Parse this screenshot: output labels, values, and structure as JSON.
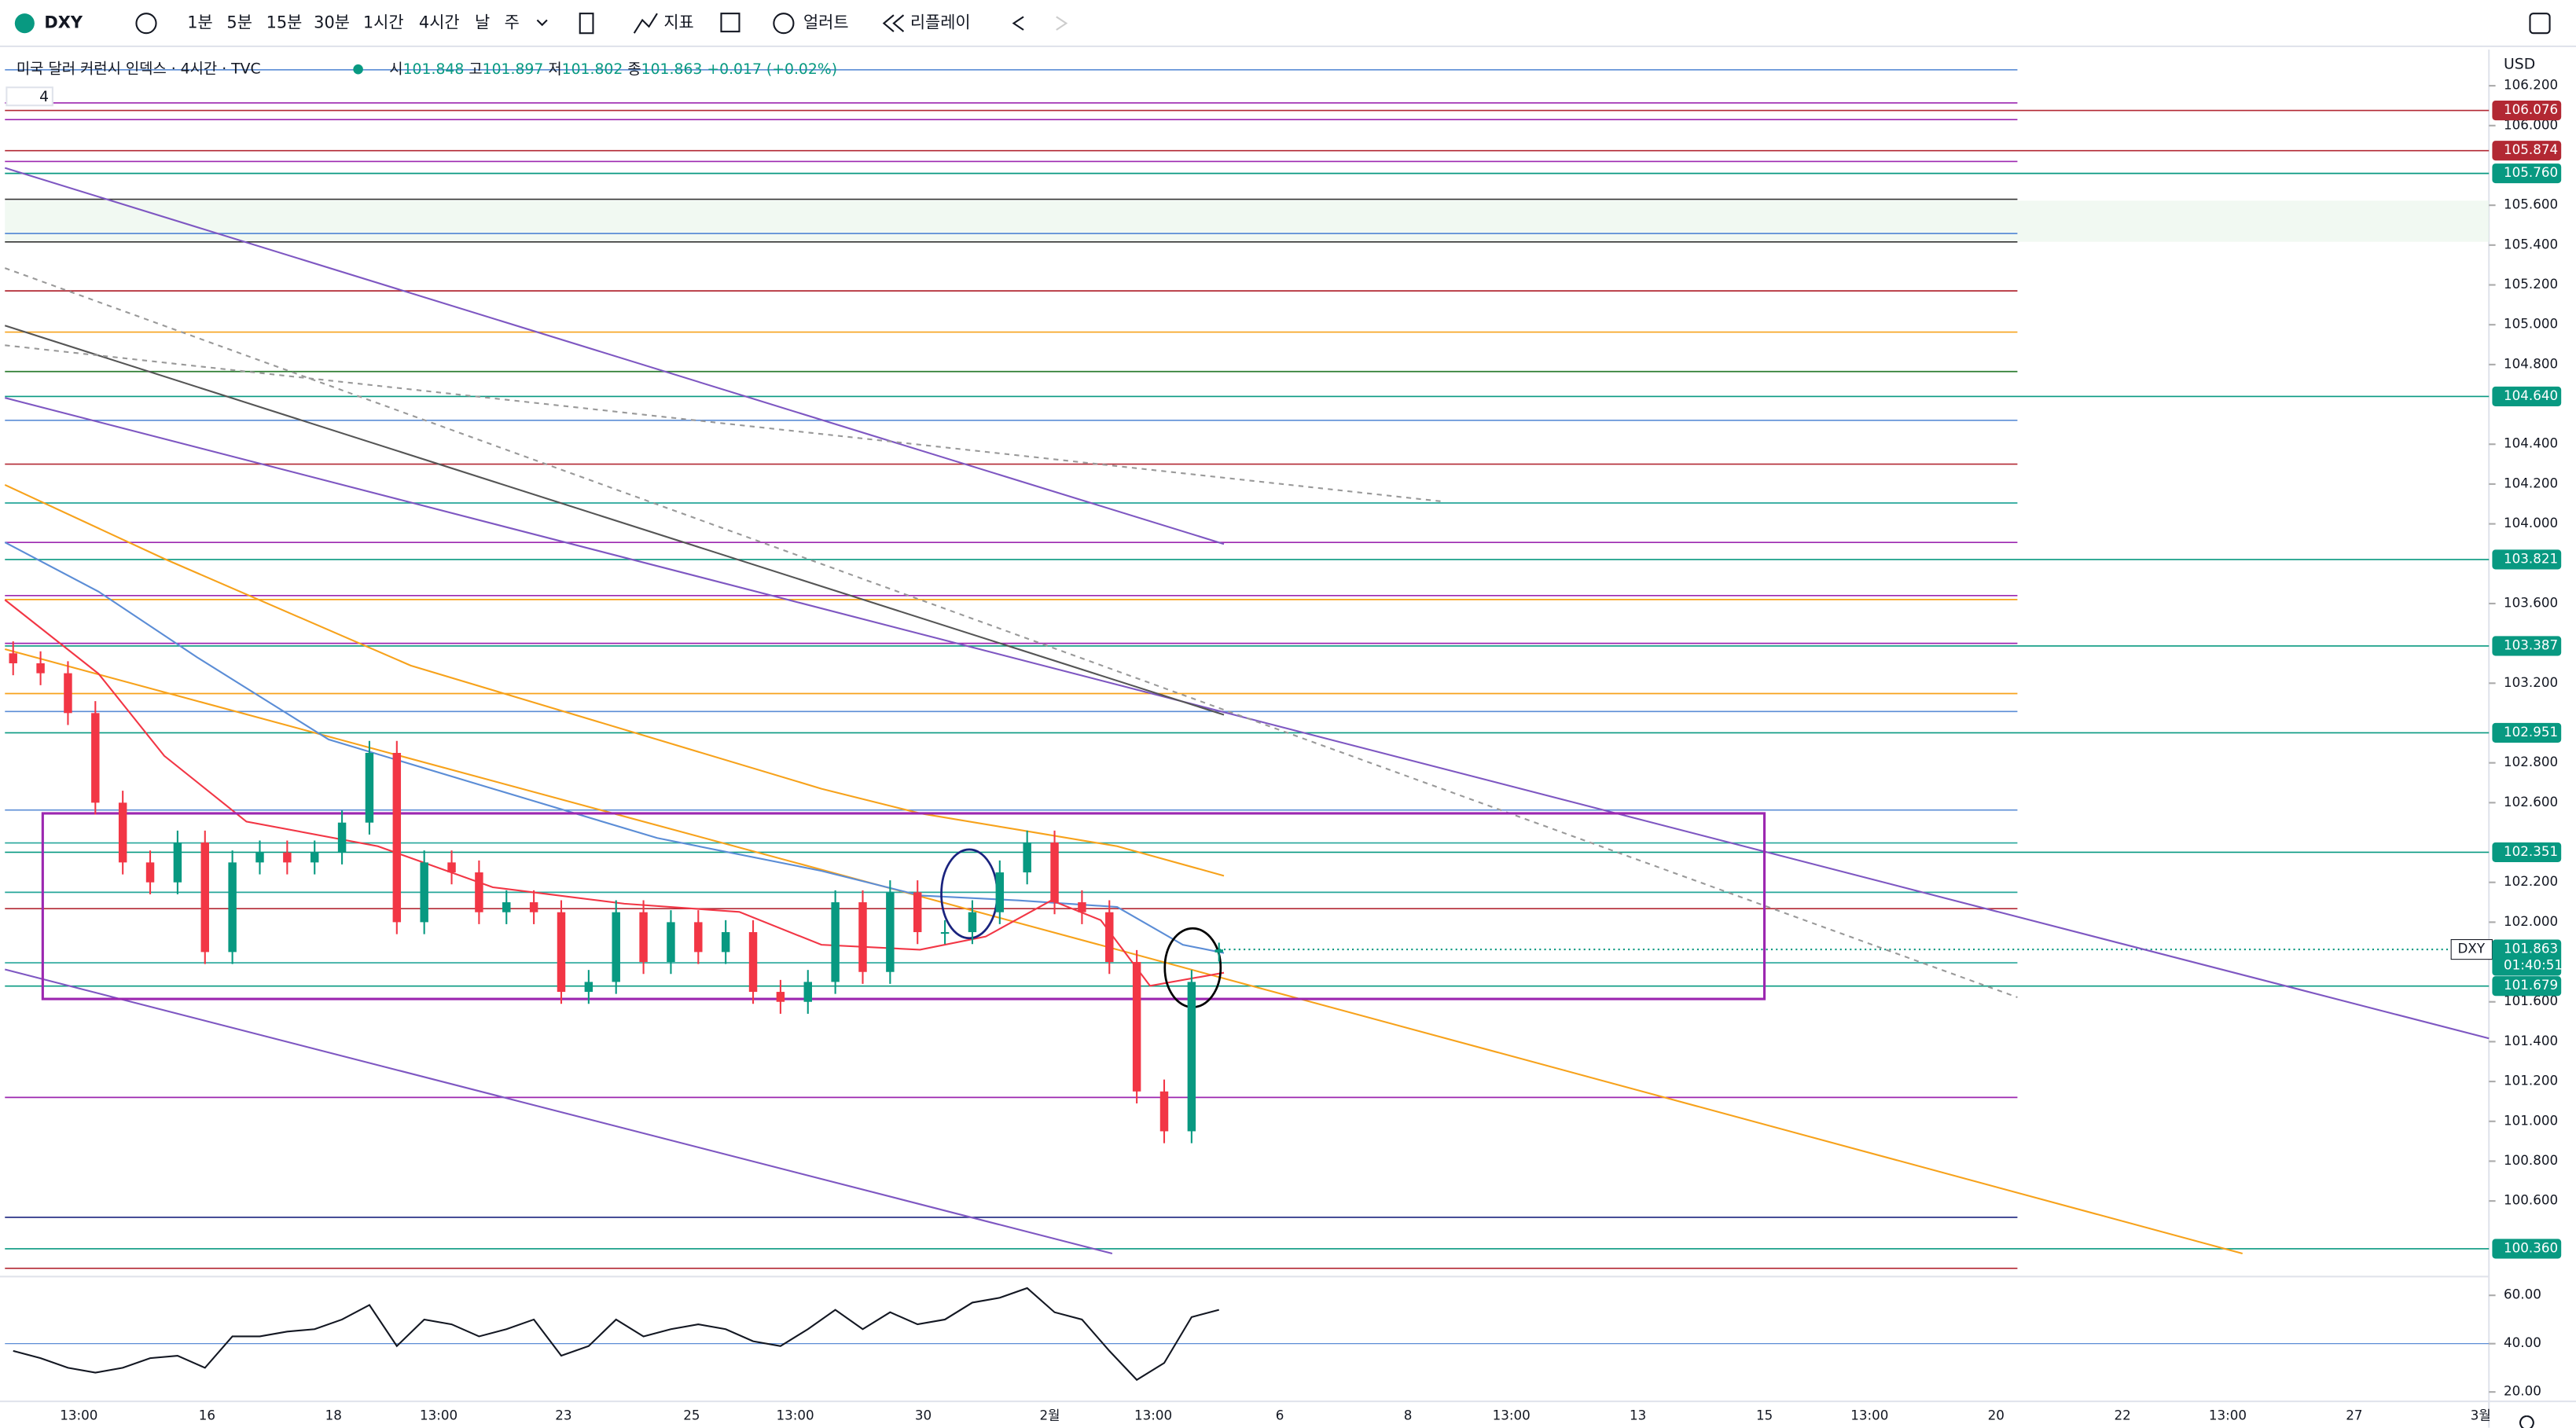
{
  "toolbar": {
    "symbol": "DXY",
    "intervals": [
      "1분",
      "5분",
      "15분",
      "30분",
      "1시간",
      "4시간",
      "날",
      "주"
    ],
    "active_interval": 5,
    "indicators": "지표",
    "alerts": "얼러트",
    "replay": "리플레이"
  },
  "legend": {
    "title": "미국 달러 커런시 인덱스 · 4시간 · TVC",
    "open_label": "시",
    "high_label": "고",
    "low_label": "저",
    "close_label": "종",
    "change": "+0.017 (+0.02%)",
    "indicator_count": "4"
  },
  "price_axis": {
    "currency": "USD",
    "countdown": "01:40:51",
    "symbol_tag": "DXY"
  },
  "chart_data": {
    "type": "candlestick",
    "up_color": "#089981",
    "down_color": "#f23645",
    "candles": {
      "open": [
        103.35,
        103.3,
        103.25,
        103.05,
        102.6,
        102.3,
        102.2,
        102.4,
        101.85,
        102.3,
        102.35,
        102.3,
        102.35,
        102.5,
        102.85,
        102.0,
        102.3,
        102.25,
        102.05,
        102.1,
        102.05,
        101.65,
        101.7,
        102.05,
        101.8,
        102.0,
        101.85,
        101.95,
        101.65,
        101.6,
        101.7,
        102.1,
        101.75,
        102.15,
        101.95,
        101.95,
        102.05,
        102.25,
        102.4,
        102.1,
        102.05,
        101.8,
        101.15,
        100.95,
        101.848
      ],
      "high": [
        103.41,
        103.36,
        103.31,
        103.11,
        102.66,
        102.36,
        102.46,
        102.46,
        102.36,
        102.41,
        102.41,
        102.41,
        102.56,
        102.91,
        102.91,
        102.36,
        102.36,
        102.31,
        102.16,
        102.16,
        102.11,
        101.76,
        102.11,
        102.11,
        102.06,
        102.06,
        102.01,
        102.01,
        101.71,
        101.76,
        102.16,
        102.16,
        102.21,
        102.21,
        102.01,
        102.11,
        102.31,
        102.46,
        102.46,
        102.16,
        102.11,
        101.86,
        101.21,
        101.76,
        101.897
      ],
      "low": [
        103.24,
        103.19,
        102.99,
        102.54,
        102.24,
        102.14,
        102.14,
        101.79,
        101.79,
        102.24,
        102.24,
        102.24,
        102.29,
        102.44,
        101.94,
        101.94,
        102.19,
        101.99,
        101.99,
        101.99,
        101.59,
        101.59,
        101.64,
        101.74,
        101.74,
        101.79,
        101.79,
        101.59,
        101.54,
        101.54,
        101.64,
        101.69,
        101.69,
        101.89,
        101.89,
        101.89,
        101.99,
        102.19,
        102.04,
        101.99,
        101.74,
        101.09,
        100.89,
        100.89,
        101.802
      ],
      "close": [
        103.3,
        103.25,
        103.05,
        102.6,
        102.3,
        102.2,
        102.4,
        101.85,
        102.3,
        102.35,
        102.3,
        102.35,
        102.5,
        102.85,
        102.0,
        102.3,
        102.25,
        102.05,
        102.1,
        102.05,
        101.65,
        101.7,
        102.05,
        101.8,
        102.0,
        101.85,
        101.95,
        101.65,
        101.6,
        101.7,
        102.1,
        101.75,
        102.15,
        101.95,
        101.95,
        102.05,
        102.25,
        102.4,
        102.1,
        102.05,
        101.8,
        101.15,
        100.95,
        101.7,
        101.863
      ]
    },
    "ylim": [
      100.237,
      106.365
    ],
    "yticks": [
      {
        "value": 106.2,
        "label": "106.200"
      },
      {
        "value": 106.0,
        "label": "106.000"
      },
      {
        "value": 105.6,
        "label": "105.600"
      },
      {
        "value": 105.4,
        "label": "105.400"
      },
      {
        "value": 105.2,
        "label": "105.200"
      },
      {
        "value": 105.0,
        "label": "105.000"
      },
      {
        "value": 104.8,
        "label": "104.800"
      },
      {
        "value": 104.4,
        "label": "104.400"
      },
      {
        "value": 104.2,
        "label": "104.200"
      },
      {
        "value": 104.0,
        "label": "104.000"
      },
      {
        "value": 103.6,
        "label": "103.600"
      },
      {
        "value": 103.2,
        "label": "103.200"
      },
      {
        "value": 102.8,
        "label": "102.800"
      },
      {
        "value": 102.6,
        "label": "102.600"
      },
      {
        "value": 102.2,
        "label": "102.200"
      },
      {
        "value": 102.0,
        "label": "102.000"
      },
      {
        "value": 101.6,
        "label": "101.600"
      },
      {
        "value": 101.4,
        "label": "101.400"
      },
      {
        "value": 101.2,
        "label": "101.200"
      },
      {
        "value": 101.0,
        "label": "101.000"
      },
      {
        "value": 100.8,
        "label": "100.800"
      },
      {
        "value": 100.6,
        "label": "100.600"
      }
    ],
    "tagged_levels": {
      "values": [
        106.076,
        105.874,
        105.76,
        104.64,
        103.821,
        103.387,
        102.951,
        102.351,
        101.679,
        100.36
      ],
      "value_labels": [
        "106.076",
        "105.874",
        "105.760",
        "104.640",
        "103.821",
        "103.387",
        "102.951",
        "102.351",
        "101.679",
        "100.360"
      ],
      "colors": [
        "#b22833",
        "#b22833",
        "#089981",
        "#089981",
        "#089981",
        "#089981",
        "#089981",
        "#089981",
        "#089981",
        "#089981"
      ]
    },
    "lines": {
      "values": [
        106.28,
        106.114,
        106.03,
        105.82,
        105.63,
        105.458,
        105.416,
        105.17,
        104.963,
        104.765,
        104.52,
        104.3,
        104.105,
        103.907,
        103.64,
        103.62,
        103.4,
        103.148,
        103.058,
        102.563,
        102.398,
        102.15,
        102.068,
        101.796,
        101.12,
        100.518,
        100.262
      ],
      "colors": [
        "#5b8dd6",
        "#9c27b0",
        "#9c27b0",
        "#9c27b0",
        "#333",
        "#5b8dd6",
        "#333",
        "#b22833",
        "#f7a21b",
        "#2e7d32",
        "#5b8dd6",
        "#b22833",
        "#26a69a",
        "#9c27b0",
        "#9c27b0",
        "#f7a21b",
        "#9c27b0",
        "#f7a21b",
        "#5b8dd6",
        "#5b8dd6",
        "#26a69a",
        "#26a69a",
        "#b22833",
        "#26a69a",
        "#9c27b0",
        "#1a237e",
        "#b22833"
      ]
    },
    "x_labels": [
      "13:00",
      "16",
      "18",
      "13:00",
      "23",
      "25",
      "13:00",
      "30",
      "2월",
      "13:00",
      "6",
      "8",
      "13:00",
      "13",
      "15",
      "13:00",
      "20",
      "22",
      "13:00",
      "27",
      "3월"
    ],
    "rsi": {
      "values": [
        37,
        34,
        30,
        28,
        30,
        34,
        35,
        30,
        43,
        43,
        45,
        46,
        50,
        56,
        39,
        50,
        48,
        43,
        46,
        50,
        35,
        39,
        50,
        43,
        46,
        48,
        46,
        41,
        39,
        46,
        54,
        46,
        53,
        48,
        50,
        57,
        59,
        63,
        53,
        50,
        37,
        25,
        32,
        51,
        54
      ],
      "color": "#131722",
      "ylim": [
        16.1,
        67.1
      ],
      "yticks": [
        {
          "value": 60,
          "label": "60.00"
        },
        {
          "value": 40,
          "label": "40.00"
        },
        {
          "value": 20,
          "label": "20.00"
        }
      ]
    }
  }
}
